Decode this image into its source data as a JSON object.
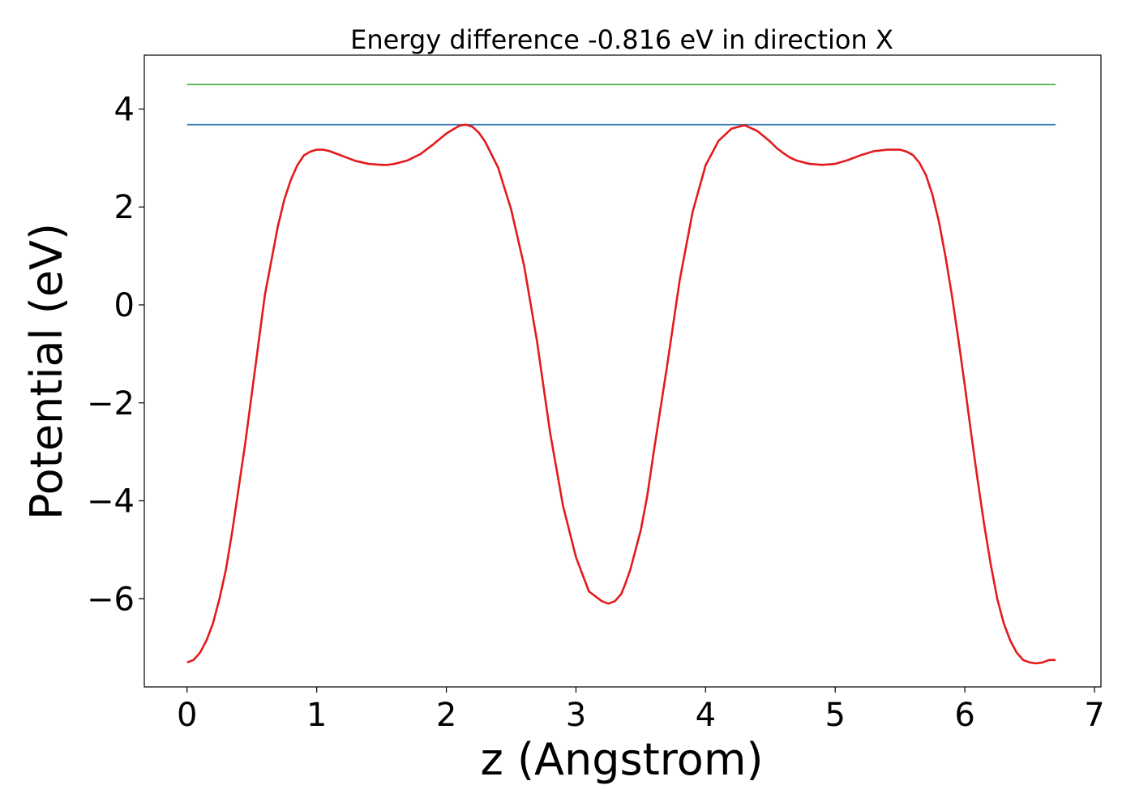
{
  "chart_data": {
    "type": "line",
    "title": "Energy difference -0.816 eV in direction X",
    "xlabel": "z (Angstrom)",
    "ylabel": "Potential (eV)",
    "xlim": [
      -0.33,
      7.05
    ],
    "ylim": [
      -7.8,
      5.1
    ],
    "xticks": [
      0,
      1,
      2,
      3,
      4,
      5,
      6,
      7
    ],
    "xtick_labels": [
      "0",
      "1",
      "2",
      "3",
      "4",
      "5",
      "6",
      "7"
    ],
    "yticks": [
      -6,
      -4,
      -2,
      0,
      2,
      4
    ],
    "ytick_labels": [
      "−6",
      "−4",
      "−2",
      "0",
      "2",
      "4"
    ],
    "grid": false,
    "colors": {
      "potential": "#e41a1c",
      "line_blue": "#377eb8",
      "line_green": "#4daf4a"
    },
    "series": [
      {
        "role": "potential",
        "x": [
          0,
          0.05,
          0.1,
          0.15,
          0.2,
          0.25,
          0.3,
          0.35,
          0.4,
          0.45,
          0.5,
          0.55,
          0.6,
          0.65,
          0.7,
          0.75,
          0.8,
          0.85,
          0.9,
          0.95,
          1.0,
          1.05,
          1.1,
          1.15,
          1.2,
          1.25,
          1.3,
          1.4,
          1.5,
          1.55,
          1.6,
          1.7,
          1.8,
          1.9,
          2.0,
          2.1,
          2.15,
          2.2,
          2.25,
          2.3,
          2.4,
          2.5,
          2.6,
          2.7,
          2.8,
          2.9,
          3.0,
          3.1,
          3.2,
          3.25,
          3.3,
          3.35,
          3.38,
          3.42,
          3.46,
          3.5,
          3.55,
          3.6,
          3.7,
          3.8,
          3.9,
          4.0,
          4.1,
          4.2,
          4.3,
          4.4,
          4.5,
          4.55,
          4.6,
          4.65,
          4.7,
          4.8,
          4.9,
          5.0,
          5.1,
          5.2,
          5.3,
          5.4,
          5.5,
          5.55,
          5.6,
          5.65,
          5.7,
          5.75,
          5.8,
          5.85,
          5.9,
          5.95,
          6.0,
          6.05,
          6.1,
          6.15,
          6.2,
          6.25,
          6.3,
          6.35,
          6.4,
          6.45,
          6.5,
          6.55,
          6.6,
          6.65,
          6.7
        ],
        "y": [
          -7.3,
          -7.25,
          -7.1,
          -6.85,
          -6.5,
          -6.0,
          -5.4,
          -4.6,
          -3.7,
          -2.8,
          -1.8,
          -0.8,
          0.2,
          0.9,
          1.6,
          2.15,
          2.55,
          2.85,
          3.05,
          3.13,
          3.17,
          3.17,
          3.14,
          3.09,
          3.04,
          2.99,
          2.94,
          2.88,
          2.86,
          2.86,
          2.88,
          2.95,
          3.08,
          3.28,
          3.5,
          3.66,
          3.68,
          3.64,
          3.52,
          3.33,
          2.8,
          1.95,
          0.8,
          -0.75,
          -2.6,
          -4.1,
          -5.15,
          -5.85,
          -6.05,
          -6.1,
          -6.05,
          -5.9,
          -5.7,
          -5.4,
          -5.0,
          -4.6,
          -3.9,
          -3.0,
          -1.3,
          0.5,
          1.9,
          2.85,
          3.35,
          3.6,
          3.67,
          3.55,
          3.33,
          3.2,
          3.1,
          3.01,
          2.95,
          2.88,
          2.86,
          2.88,
          2.96,
          3.06,
          3.14,
          3.17,
          3.17,
          3.13,
          3.06,
          2.9,
          2.65,
          2.25,
          1.7,
          1.0,
          0.2,
          -0.7,
          -1.65,
          -2.65,
          -3.6,
          -4.5,
          -5.3,
          -6.0,
          -6.5,
          -6.85,
          -7.1,
          -7.25,
          -7.3,
          -7.32,
          -7.3,
          -7.25,
          -7.25
        ]
      },
      {
        "role": "line_blue",
        "x": [
          0,
          6.7
        ],
        "y": [
          3.68,
          3.68
        ]
      },
      {
        "role": "line_green",
        "x": [
          0,
          6.7
        ],
        "y": [
          4.5,
          4.5
        ]
      }
    ]
  }
}
